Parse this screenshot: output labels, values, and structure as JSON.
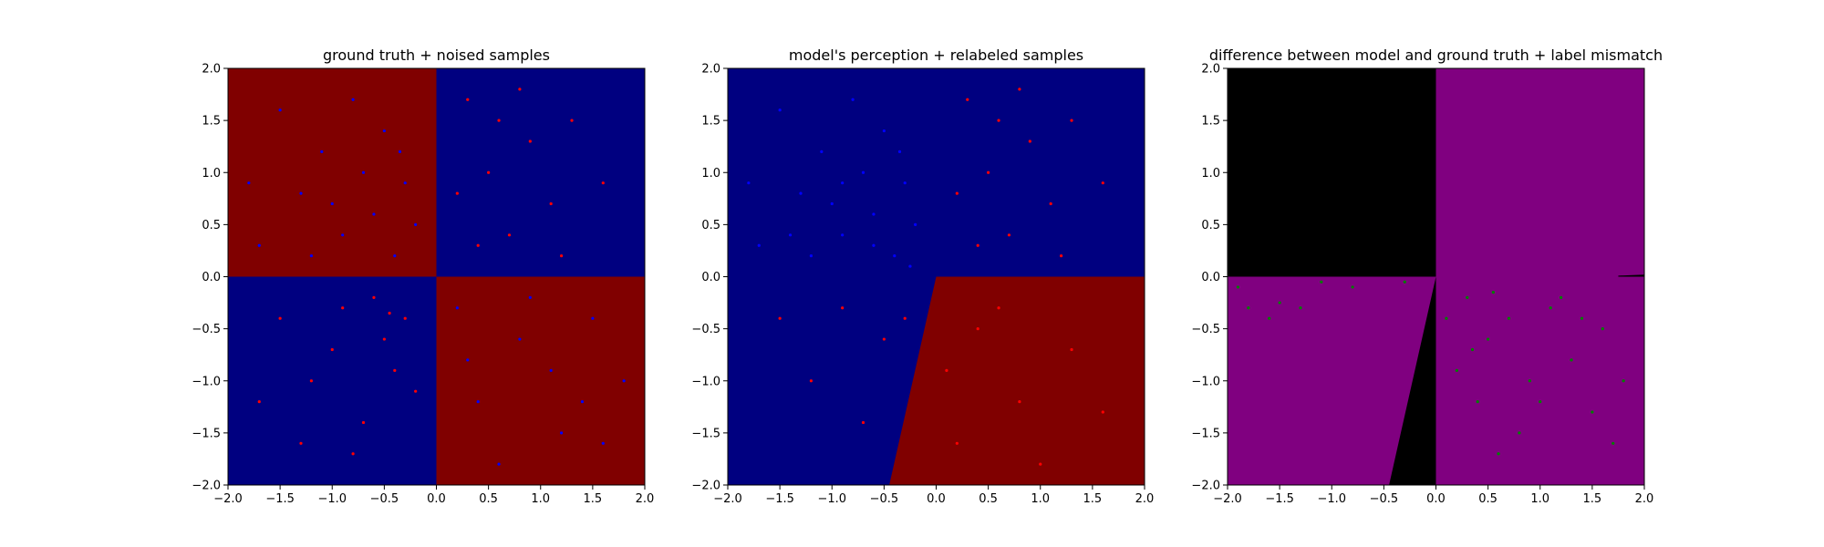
{
  "colors": {
    "class_a_region": "#800000",
    "class_b_region": "#000080",
    "class_a_point": "#ff0000",
    "class_b_point": "#0000ff",
    "agree_region": "#800080",
    "disagree_region": "#000000",
    "mismatch_point": "#008000"
  },
  "chart_data": [
    {
      "type": "scatter",
      "title": "ground truth + noised samples",
      "xlabel": "",
      "ylabel": "",
      "xlim": [
        -2.0,
        2.0
      ],
      "ylim": [
        -2.0,
        2.0
      ],
      "xticks": [
        "−2.0",
        "−1.5",
        "−1.0",
        "−0.5",
        "0.0",
        "0.5",
        "1.0",
        "1.5",
        "2.0"
      ],
      "yticks": [
        "−2.0",
        "−1.5",
        "−1.0",
        "−0.5",
        "0.0",
        "0.5",
        "1.0",
        "1.5",
        "2.0"
      ],
      "grid": false,
      "background_regions": [
        {
          "color": "#800000",
          "x": [
            -2.0,
            0.0
          ],
          "y": [
            0.0,
            2.0
          ]
        },
        {
          "color": "#000080",
          "x": [
            0.0,
            2.0
          ],
          "y": [
            0.0,
            2.0
          ]
        },
        {
          "color": "#000080",
          "x": [
            -2.0,
            0.0
          ],
          "y": [
            -2.0,
            0.0
          ]
        },
        {
          "color": "#800000",
          "x": [
            0.0,
            2.0
          ],
          "y": [
            -2.0,
            0.0
          ]
        }
      ],
      "series": [
        {
          "color": "#0000ff",
          "points": [
            [
              -1.7,
              0.3
            ],
            [
              -1.5,
              1.6
            ],
            [
              -1.3,
              0.8
            ],
            [
              -1.1,
              1.2
            ],
            [
              -0.9,
              0.4
            ],
            [
              -0.7,
              1.0
            ],
            [
              -0.6,
              0.6
            ],
            [
              -0.5,
              1.4
            ],
            [
              -0.4,
              0.2
            ],
            [
              -0.3,
              0.9
            ],
            [
              -1.8,
              0.9
            ],
            [
              -1.2,
              0.2
            ],
            [
              -0.8,
              1.7
            ],
            [
              -0.2,
              0.5
            ],
            [
              -1.0,
              0.7
            ],
            [
              -0.35,
              1.2
            ],
            [
              1.5,
              -0.4
            ],
            [
              1.2,
              -1.5
            ],
            [
              0.8,
              -0.6
            ],
            [
              0.4,
              -1.2
            ],
            [
              1.8,
              -1.0
            ],
            [
              0.6,
              -1.8
            ],
            [
              1.1,
              -0.9
            ],
            [
              0.2,
              -0.3
            ],
            [
              1.6,
              -1.6
            ],
            [
              0.9,
              -0.2
            ],
            [
              0.3,
              -0.8
            ],
            [
              1.4,
              -1.2
            ]
          ]
        },
        {
          "color": "#ff0000",
          "points": [
            [
              0.3,
              1.7
            ],
            [
              0.5,
              1.0
            ],
            [
              0.7,
              0.4
            ],
            [
              0.9,
              1.3
            ],
            [
              1.1,
              0.7
            ],
            [
              1.3,
              1.5
            ],
            [
              0.4,
              0.3
            ],
            [
              1.6,
              0.9
            ],
            [
              0.2,
              0.8
            ],
            [
              0.8,
              1.8
            ],
            [
              1.2,
              0.2
            ],
            [
              0.6,
              1.5
            ],
            [
              -1.5,
              -0.4
            ],
            [
              -1.2,
              -1.0
            ],
            [
              -0.9,
              -0.3
            ],
            [
              -0.7,
              -1.4
            ],
            [
              -0.5,
              -0.6
            ],
            [
              -0.3,
              -0.4
            ],
            [
              -0.4,
              -0.9
            ],
            [
              -1.0,
              -0.7
            ],
            [
              -0.8,
              -1.7
            ],
            [
              -1.7,
              -1.2
            ],
            [
              -0.2,
              -1.1
            ],
            [
              -0.6,
              -0.2
            ],
            [
              -1.3,
              -1.6
            ],
            [
              -0.45,
              -0.35
            ]
          ]
        }
      ]
    },
    {
      "type": "scatter",
      "title": "model's perception + relabeled samples",
      "xlabel": "",
      "ylabel": "",
      "xlim": [
        -2.0,
        2.0
      ],
      "ylim": [
        -2.0,
        2.0
      ],
      "xticks": [
        "−2.0",
        "−1.5",
        "−1.0",
        "−0.5",
        "0.0",
        "0.5",
        "1.0",
        "1.5",
        "2.0"
      ],
      "yticks": [
        "−2.0",
        "−1.5",
        "−1.0",
        "−0.5",
        "0.0",
        "0.5",
        "1.0",
        "1.5",
        "2.0"
      ],
      "grid": false,
      "background_regions": [
        {
          "color": "#000080",
          "polygon": [
            [
              -2.0,
              -2.0
            ],
            [
              -2.0,
              2.0
            ],
            [
              2.0,
              2.0
            ],
            [
              2.0,
              -2.0
            ]
          ]
        },
        {
          "color": "#800000",
          "polygon": [
            [
              -0.45,
              -2.0
            ],
            [
              0.0,
              0.0
            ],
            [
              2.0,
              0.0
            ],
            [
              2.0,
              -2.0
            ]
          ]
        }
      ],
      "series": [
        {
          "color": "#0000ff",
          "points": [
            [
              -1.7,
              0.3
            ],
            [
              -1.5,
              1.6
            ],
            [
              -1.3,
              0.8
            ],
            [
              -1.1,
              1.2
            ],
            [
              -0.9,
              0.4
            ],
            [
              -0.7,
              1.0
            ],
            [
              -0.6,
              0.6
            ],
            [
              -0.5,
              1.4
            ],
            [
              -0.4,
              0.2
            ],
            [
              -0.3,
              0.9
            ],
            [
              -1.8,
              0.9
            ],
            [
              -1.2,
              0.2
            ],
            [
              -0.8,
              1.7
            ],
            [
              -0.2,
              0.5
            ],
            [
              -1.0,
              0.7
            ],
            [
              -0.35,
              1.2
            ],
            [
              -0.6,
              0.3
            ],
            [
              -0.25,
              0.1
            ],
            [
              -0.9,
              0.9
            ],
            [
              -1.4,
              0.4
            ]
          ]
        },
        {
          "color": "#ff0000",
          "points": [
            [
              0.3,
              1.7
            ],
            [
              0.5,
              1.0
            ],
            [
              0.7,
              0.4
            ],
            [
              0.9,
              1.3
            ],
            [
              1.1,
              0.7
            ],
            [
              1.3,
              1.5
            ],
            [
              0.4,
              0.3
            ],
            [
              1.6,
              0.9
            ],
            [
              0.2,
              0.8
            ],
            [
              0.8,
              1.8
            ],
            [
              1.2,
              0.2
            ],
            [
              0.6,
              1.5
            ],
            [
              -1.5,
              -0.4
            ],
            [
              -1.2,
              -1.0
            ],
            [
              -0.9,
              -0.3
            ],
            [
              -0.7,
              -1.4
            ],
            [
              -0.5,
              -0.6
            ],
            [
              -0.3,
              -0.4
            ],
            [
              0.4,
              -0.5
            ],
            [
              0.8,
              -1.2
            ],
            [
              1.3,
              -0.7
            ],
            [
              0.2,
              -1.6
            ],
            [
              1.6,
              -1.3
            ],
            [
              0.6,
              -0.3
            ],
            [
              1.0,
              -1.8
            ],
            [
              0.1,
              -0.9
            ]
          ]
        }
      ]
    },
    {
      "type": "scatter",
      "title": "difference between model and ground truth + label mismatch",
      "xlabel": "",
      "ylabel": "",
      "xlim": [
        -2.0,
        2.0
      ],
      "ylim": [
        -2.0,
        2.0
      ],
      "xticks": [
        "−2.0",
        "−1.5",
        "−1.0",
        "−0.5",
        "0.0",
        "0.5",
        "1.0",
        "1.5",
        "2.0"
      ],
      "yticks": [
        "−2.0",
        "−1.5",
        "−1.0",
        "−0.5",
        "0.0",
        "0.5",
        "1.0",
        "1.5",
        "2.0"
      ],
      "grid": false,
      "background_regions": [
        {
          "color": "#800080",
          "polygon": [
            [
              -2.0,
              -2.0
            ],
            [
              -2.0,
              2.0
            ],
            [
              2.0,
              2.0
            ],
            [
              2.0,
              -2.0
            ]
          ]
        },
        {
          "color": "#000000",
          "polygon": [
            [
              -2.0,
              0.0
            ],
            [
              -2.0,
              2.0
            ],
            [
              0.0,
              2.0
            ],
            [
              0.0,
              0.0
            ]
          ]
        },
        {
          "color": "#000000",
          "polygon": [
            [
              -0.45,
              -2.0
            ],
            [
              0.0,
              0.0
            ],
            [
              0.0,
              -2.0
            ]
          ]
        },
        {
          "color": "#000000",
          "polygon": [
            [
              1.75,
              0.0
            ],
            [
              2.0,
              0.0
            ],
            [
              2.0,
              0.02
            ],
            [
              1.75,
              0.01
            ]
          ]
        }
      ],
      "series": [
        {
          "color": "#008000",
          "points": [
            [
              0.3,
              -0.2
            ],
            [
              0.5,
              -0.6
            ],
            [
              0.7,
              -0.4
            ],
            [
              0.9,
              -1.0
            ],
            [
              1.1,
              -0.3
            ],
            [
              1.3,
              -0.8
            ],
            [
              0.4,
              -1.2
            ],
            [
              1.6,
              -0.5
            ],
            [
              0.2,
              -0.9
            ],
            [
              0.8,
              -1.5
            ],
            [
              1.2,
              -0.2
            ],
            [
              0.6,
              -1.7
            ],
            [
              1.5,
              -1.3
            ],
            [
              1.8,
              -1.0
            ],
            [
              0.1,
              -0.4
            ],
            [
              1.0,
              -1.2
            ],
            [
              0.35,
              -0.7
            ],
            [
              1.4,
              -0.4
            ],
            [
              0.55,
              -0.15
            ],
            [
              1.7,
              -1.6
            ],
            [
              -1.8,
              -0.3
            ],
            [
              -1.5,
              -0.25
            ],
            [
              -1.1,
              -0.05
            ],
            [
              -0.8,
              -0.1
            ],
            [
              -1.9,
              -0.1
            ],
            [
              -1.3,
              -0.3
            ],
            [
              -0.3,
              -0.05
            ],
            [
              -1.6,
              -0.4
            ]
          ]
        }
      ]
    }
  ]
}
